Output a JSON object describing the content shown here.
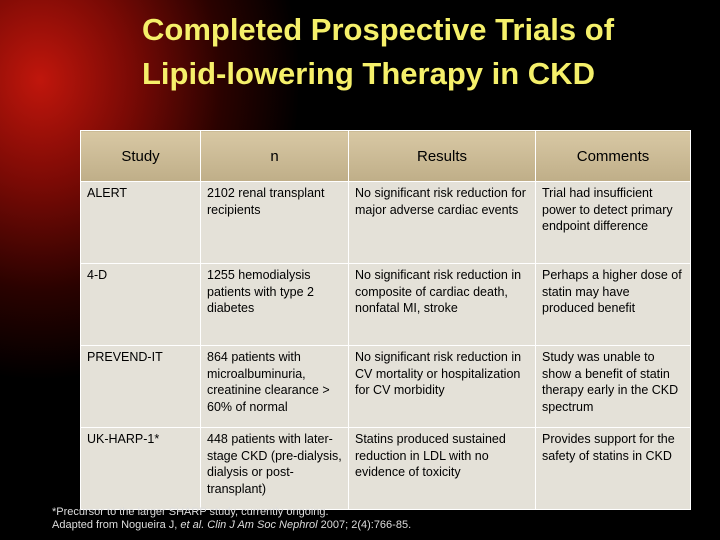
{
  "header": {
    "title": [
      "Completed Prospective Trials of",
      "Lipid-lowering Therapy in CKD"
    ]
  },
  "table": {
    "columns": [
      "Study",
      "n",
      "Results",
      "Comments"
    ],
    "rows": [
      [
        "ALERT",
        "2102 renal transplant recipients",
        "No significant risk reduction for major adverse cardiac events",
        "Trial had insufficient power to detect primary endpoint difference"
      ],
      [
        "4-D",
        "1255 hemodialysis patients with type 2 diabetes",
        "No significant risk reduction in composite of cardiac death, nonfatal MI, stroke",
        "Perhaps a higher dose of statin may have produced benefit"
      ],
      [
        "PREVEND-IT",
        "864 patients with microalbuminuria, creatinine clearance > 60% of normal",
        "No significant risk reduction in CV mortality or hospitalization for CV morbidity",
        "Study was unable to show a benefit of statin therapy early in the CKD spectrum"
      ],
      [
        "UK-HARP-1*",
        "448 patients with later-stage CKD (pre-dialysis, dialysis or post-transplant)",
        "Statins produced sustained reduction in LDL with no evidence of toxicity",
        "Provides support for the safety of statins in CKD"
      ]
    ]
  },
  "footnotes": {
    "note": "*Precursor to the larger SHARP study, currently ongoing.",
    "source": [
      "Adapted from Nogueira J, ",
      "et al. Clin J Am Soc Nephrol",
      " 2007; 2(4):766-85."
    ]
  }
}
